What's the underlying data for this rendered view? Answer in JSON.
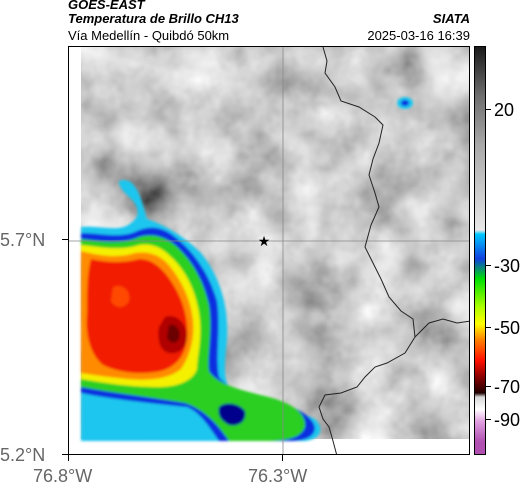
{
  "header": {
    "satellite": "GOES-EAST",
    "product": "Temperatura de Brillo CH13",
    "route": "Vía Medellín - Quibdó 50km",
    "brand": "SIATA",
    "timestamp": "2025-03-16 16:39"
  },
  "axes": {
    "y_ticks": [
      "5.7°N",
      "5.2°N"
    ],
    "x_ticks": [
      "76.8°W",
      "76.3°W"
    ]
  },
  "colorbar": {
    "ticks": [
      "20",
      "-30",
      "-50",
      "-70",
      "-90"
    ],
    "colors": [
      "#1a1a1a",
      "#9a9a9a",
      "#e6e6e6",
      "#00bfff",
      "#00e000",
      "#ffff00",
      "#ff2200",
      "#5a0000",
      "#ffffff",
      "#b050b0"
    ]
  },
  "map": {
    "marker_icon": "star-icon",
    "colors": {
      "land_gray": "#9d9d9d",
      "cold_cloud_red": "#f21a00",
      "ring_yellow": "#f4f000",
      "ring_green": "#2ccf22",
      "ring_blue": "#0a2ee0",
      "ring_cyan": "#1ec6ee"
    }
  }
}
